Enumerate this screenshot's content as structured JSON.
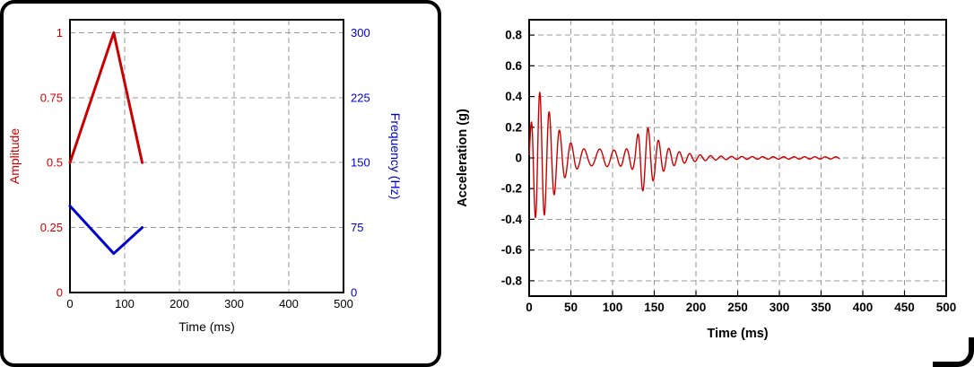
{
  "chart_data": [
    {
      "type": "line",
      "title": "",
      "xlabel": "Time (ms)",
      "xlim": [
        0,
        500
      ],
      "x_ticks": [
        0,
        100,
        200,
        300,
        400,
        500
      ],
      "grid": "dashed",
      "y_left": {
        "label": "Amplitude",
        "color": "#cc0000",
        "ticks": [
          0,
          0.25,
          0.5,
          0.75,
          1
        ],
        "lim": [
          0,
          1.05
        ]
      },
      "y_right": {
        "label": "Frequency (Hz)",
        "color": "#0000cc",
        "ticks": [
          0,
          75,
          150,
          225,
          300
        ],
        "lim": [
          0,
          315
        ]
      },
      "series": [
        {
          "name": "amplitude",
          "axis": "left",
          "color": "#cc0000",
          "stroke_width": 3,
          "points": [
            [
              0,
              0.5
            ],
            [
              80,
              1
            ],
            [
              132,
              0.5
            ]
          ]
        },
        {
          "name": "frequency",
          "axis": "right",
          "color": "#0000cc",
          "stroke_width": 3,
          "points": [
            [
              0,
              100
            ],
            [
              80,
              45
            ],
            [
              132,
              75
            ]
          ]
        }
      ]
    },
    {
      "type": "line",
      "title": "",
      "xlabel": "Time (ms)",
      "ylabel": "Acceleration (g)",
      "xlim": [
        0,
        500
      ],
      "x_ticks": [
        0,
        50,
        100,
        150,
        200,
        250,
        300,
        350,
        400,
        450,
        500
      ],
      "ylim": [
        -0.9,
        0.9
      ],
      "y_ticks": [
        0.8,
        0.6,
        0.4,
        0.2,
        0,
        -0.2,
        -0.4,
        -0.6,
        -0.8
      ],
      "grid": "dashed",
      "series": [
        {
          "name": "acceleration",
          "color": "#cc0000",
          "stroke_width": 1.4,
          "signal": {
            "t_range_ms": [
              0,
              372
            ],
            "envelope_g": [
              [
                0,
                0.12
              ],
              [
                4,
                0.3
              ],
              [
                10,
                0.45
              ],
              [
                16,
                0.4
              ],
              [
                24,
                0.3
              ],
              [
                34,
                0.2
              ],
              [
                44,
                0.12
              ],
              [
                58,
                0.07
              ],
              [
                72,
                0.05
              ],
              [
                88,
                0.06
              ],
              [
                104,
                0.05
              ],
              [
                118,
                0.06
              ],
              [
                126,
                0.08
              ],
              [
                134,
                0.22
              ],
              [
                142,
                0.2
              ],
              [
                150,
                0.14
              ],
              [
                158,
                0.1
              ],
              [
                168,
                0.06
              ],
              [
                180,
                0.04
              ],
              [
                196,
                0.025
              ],
              [
                216,
                0.015
              ],
              [
                240,
                0.01
              ],
              [
                280,
                0.008
              ],
              [
                372,
                0.007
              ]
            ],
            "frequency_hz": [
              [
                0,
                100
              ],
              [
                80,
                50
              ],
              [
                132,
                80
              ],
              [
                372,
                80
              ]
            ]
          }
        }
      ]
    }
  ]
}
